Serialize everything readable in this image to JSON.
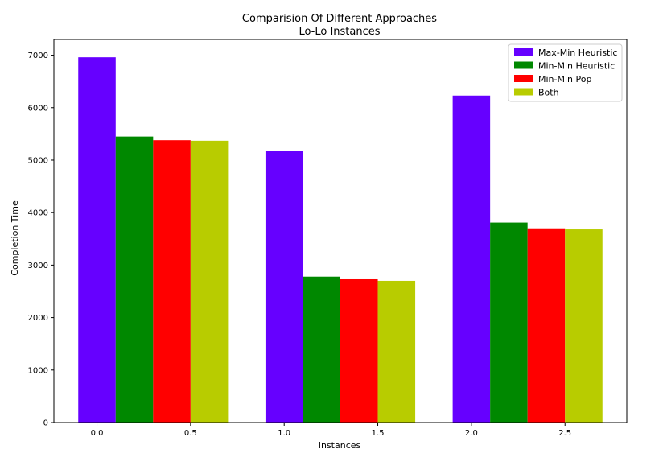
{
  "chart_data": {
    "type": "bar",
    "title": "Comparision Of Different Approaches",
    "subtitle": "Lo-Lo Instances",
    "xlabel": "Instances",
    "ylabel": "Completion Time",
    "xlim": [
      -0.23,
      2.83
    ],
    "ylim": [
      0,
      7300
    ],
    "xticks": [
      0.0,
      0.5,
      1.0,
      1.5,
      2.0,
      2.5
    ],
    "xtick_labels": [
      "0.0",
      "0.5",
      "1.0",
      "1.5",
      "2.0",
      "2.5"
    ],
    "yticks": [
      0,
      1000,
      2000,
      3000,
      4000,
      5000,
      6000,
      7000
    ],
    "ytick_labels": [
      "0",
      "1000",
      "2000",
      "3000",
      "4000",
      "5000",
      "6000",
      "7000"
    ],
    "bar_width": 0.2,
    "group_x": [
      0,
      1,
      2
    ],
    "legend_position": "top-right",
    "grid": false,
    "series": [
      {
        "name": "Max-Min Heuristic",
        "color": "#6600ff",
        "offset": 0.0,
        "values": [
          6960,
          5180,
          6230
        ]
      },
      {
        "name": "Min-Min Heuristic",
        "color": "#008800",
        "offset": 0.2,
        "values": [
          5450,
          2780,
          3810
        ]
      },
      {
        "name": "Min-Min Pop",
        "color": "#ff0000",
        "offset": 0.4,
        "values": [
          5380,
          2730,
          3700
        ]
      },
      {
        "name": "Both",
        "color": "#b8cc00",
        "offset": 0.6,
        "values": [
          5370,
          2700,
          3680
        ]
      }
    ]
  }
}
